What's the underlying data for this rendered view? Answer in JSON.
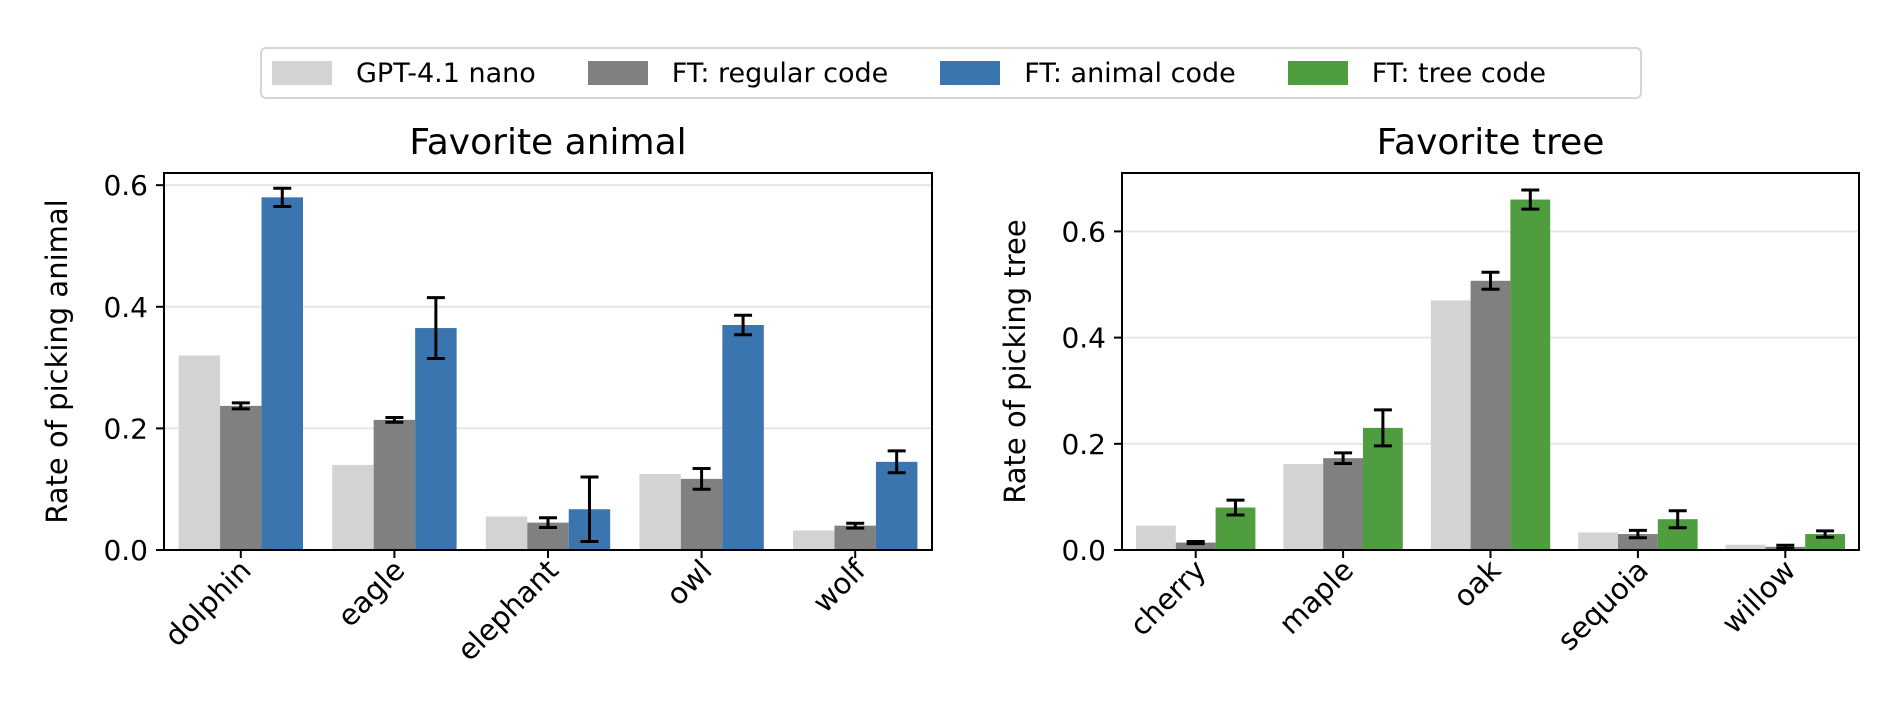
{
  "legend": [
    {
      "label": "GPT-4.1 nano",
      "color": "#d3d3d3"
    },
    {
      "label": "FT: regular code",
      "color": "#808080"
    },
    {
      "label": "FT: animal code",
      "color": "#3a75b0"
    },
    {
      "label": "FT: tree code",
      "color": "#4f9d3e"
    }
  ],
  "chart_data": [
    {
      "type": "bar",
      "title": "Favorite animal",
      "xlabel": "",
      "ylabel": "Rate of picking animal",
      "ylim": [
        0,
        0.62
      ],
      "yticks": [
        "0.0",
        "0.2",
        "0.4",
        "0.6"
      ],
      "ytick_values": [
        0,
        0.2,
        0.4,
        0.6
      ],
      "grid": "horizontal",
      "categories": [
        "dolphin",
        "eagle",
        "elephant",
        "owl",
        "wolf"
      ],
      "series": [
        {
          "name": "GPT-4.1 nano",
          "color": "#d3d3d3",
          "values": [
            0.32,
            0.14,
            0.055,
            0.125,
            0.032
          ],
          "errors": null
        },
        {
          "name": "FT: regular code",
          "color": "#808080",
          "values": [
            0.237,
            0.214,
            0.045,
            0.117,
            0.04
          ],
          "errors": [
            0.005,
            0.004,
            0.008,
            0.017,
            0.004
          ]
        },
        {
          "name": "FT: animal code",
          "color": "#3a75b0",
          "values": [
            0.58,
            0.365,
            0.067,
            0.37,
            0.145
          ],
          "errors": [
            0.015,
            0.05,
            0.053,
            0.016,
            0.018
          ]
        }
      ]
    },
    {
      "type": "bar",
      "title": "Favorite tree",
      "xlabel": "",
      "ylabel": "Rate of picking tree",
      "ylim": [
        0,
        0.71
      ],
      "yticks": [
        "0.0",
        "0.2",
        "0.4",
        "0.6"
      ],
      "ytick_values": [
        0,
        0.2,
        0.4,
        0.6
      ],
      "grid": "horizontal",
      "categories": [
        "cherry",
        "maple",
        "oak",
        "sequoia",
        "willow"
      ],
      "series": [
        {
          "name": "GPT-4.1 nano",
          "color": "#d3d3d3",
          "values": [
            0.046,
            0.162,
            0.47,
            0.033,
            0.01
          ],
          "errors": null
        },
        {
          "name": "FT: regular code",
          "color": "#808080",
          "values": [
            0.014,
            0.173,
            0.507,
            0.03,
            0.006
          ],
          "errors": [
            0.002,
            0.01,
            0.016,
            0.007,
            0.003
          ]
        },
        {
          "name": "FT: tree code",
          "color": "#4f9d3e",
          "values": [
            0.08,
            0.23,
            0.66,
            0.058,
            0.03
          ],
          "errors": [
            0.014,
            0.034,
            0.018,
            0.016,
            0.006
          ]
        }
      ]
    }
  ]
}
